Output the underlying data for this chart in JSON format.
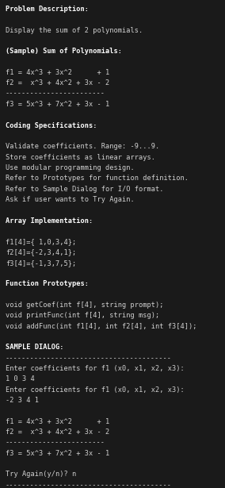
{
  "bg_color": "#1a1a1a",
  "text_color": "#d0d0d0",
  "bold_color": "#ffffff",
  "font_size": 6.2,
  "lines": [
    {
      "text": "Problem Description:",
      "bold": true
    },
    {
      "text": "",
      "bold": false
    },
    {
      "text": "Display the sum of 2 polynomials.",
      "bold": false
    },
    {
      "text": "",
      "bold": false
    },
    {
      "text": "(Sample) Sum of Polynomials:",
      "bold": true
    },
    {
      "text": "",
      "bold": false
    },
    {
      "text": "f1 = 4x^3 + 3x^2      + 1",
      "bold": false
    },
    {
      "text": "f2 =  x^3 + 4x^2 + 3x - 2",
      "bold": false
    },
    {
      "text": "------------------------",
      "bold": false
    },
    {
      "text": "f3 = 5x^3 + 7x^2 + 3x - 1",
      "bold": false
    },
    {
      "text": "",
      "bold": false
    },
    {
      "text": "Coding Specifications:",
      "bold": true
    },
    {
      "text": "",
      "bold": false
    },
    {
      "text": "Validate coefficients. Range: -9...9.",
      "bold": false
    },
    {
      "text": "Store coefficients as linear arrays.",
      "bold": false
    },
    {
      "text": "Use modular programming design.",
      "bold": false
    },
    {
      "text": "Refer to Prototypes for function definition.",
      "bold": false
    },
    {
      "text": "Refer to Sample Dialog for I/O format.",
      "bold": false
    },
    {
      "text": "Ask if user wants to Try Again.",
      "bold": false
    },
    {
      "text": "",
      "bold": false
    },
    {
      "text": "Array Implementation:",
      "bold": true
    },
    {
      "text": "",
      "bold": false
    },
    {
      "text": "f1[4]={ 1,0,3,4};",
      "bold": false
    },
    {
      "text": "f2[4]={-2,3,4,1};",
      "bold": false
    },
    {
      "text": "f3[4]={-1,3,7,5};",
      "bold": false
    },
    {
      "text": "",
      "bold": false
    },
    {
      "text": "Function Prototypes:",
      "bold": true
    },
    {
      "text": "",
      "bold": false
    },
    {
      "text": "void getCoef(int f[4], string prompt);",
      "bold": false
    },
    {
      "text": "void printFunc(int f[4], string msg);",
      "bold": false
    },
    {
      "text": "void addFunc(int f1[4], int f2[4], int f3[4]);",
      "bold": false
    },
    {
      "text": "",
      "bold": false
    },
    {
      "text": "SAMPLE DIALOG:",
      "bold": true
    },
    {
      "text": "----------------------------------------",
      "bold": false
    },
    {
      "text": "Enter coefficients for f1 (x0, x1, x2, x3):",
      "bold": false
    },
    {
      "text": "1 0 3 4",
      "bold": false
    },
    {
      "text": "Enter coefficients for f1 (x0, x1, x2, x3):",
      "bold": false
    },
    {
      "text": "-2 3 4 1",
      "bold": false
    },
    {
      "text": "",
      "bold": false
    },
    {
      "text": "f1 = 4x^3 + 3x^2      + 1",
      "bold": false
    },
    {
      "text": "f2 =  x^3 + 4x^2 + 3x - 2",
      "bold": false
    },
    {
      "text": "------------------------",
      "bold": false
    },
    {
      "text": "f3 = 5x^3 + 7x^2 + 3x - 1",
      "bold": false
    },
    {
      "text": "",
      "bold": false
    },
    {
      "text": "Try Again(y/n)? n",
      "bold": false
    },
    {
      "text": "----------------------------------------",
      "bold": false
    }
  ]
}
